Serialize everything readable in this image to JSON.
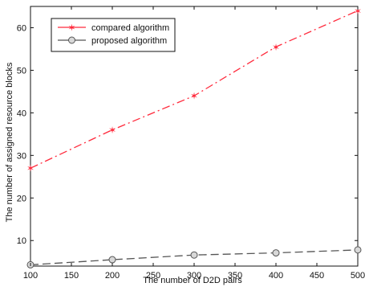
{
  "chart_data": {
    "type": "line",
    "title": "",
    "xlabel": "The number of D2D pairs",
    "ylabel": "The number of assigned resource blocks",
    "xlim": [
      100,
      500
    ],
    "ylim": [
      4,
      65
    ],
    "x_ticks": [
      100,
      150,
      200,
      250,
      300,
      350,
      400,
      450,
      500
    ],
    "y_ticks": [
      10,
      20,
      30,
      40,
      50,
      60
    ],
    "grid": false,
    "legend_position": "top-left",
    "series": [
      {
        "name": "compared algorithm",
        "x": [
          100,
          200,
          300,
          400,
          500
        ],
        "y": [
          27,
          36,
          44,
          55.5,
          64
        ],
        "color": "#ff2a3c",
        "line_style": "dash-dot",
        "marker": "star"
      },
      {
        "name": "proposed algorithm",
        "x": [
          100,
          200,
          300,
          400,
          500
        ],
        "y": [
          4.3,
          5.5,
          6.6,
          7.1,
          7.8
        ],
        "color": "#555555",
        "line_style": "dashed",
        "marker": "circle"
      }
    ]
  }
}
